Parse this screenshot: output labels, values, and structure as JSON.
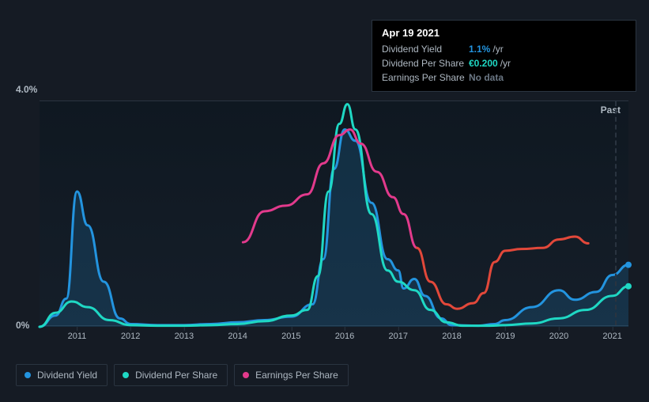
{
  "chart": {
    "type": "area-line",
    "background_color": "#151b24",
    "plot_bg_top": "#0f1821",
    "plot_bg_bottom": "#151e29",
    "grid_color": "#2a3440",
    "text_color": "#aeb8c2",
    "title_fontsize": 13,
    "label_fontsize": 12,
    "tick_fontsize": 11,
    "past_label": "Past",
    "y_axis": {
      "min_label": "0%",
      "max_label": "4.0%",
      "ymin": 0,
      "ymax": 4.0
    },
    "x_axis": {
      "xmin": 2010.3,
      "xmax": 2021.3,
      "ticks": [
        2011,
        2012,
        2013,
        2014,
        2015,
        2016,
        2017,
        2018,
        2019,
        2020,
        2021
      ]
    },
    "series": [
      {
        "id": "dividend_yield",
        "label": "Dividend Yield",
        "color": "#2394df",
        "fill": true,
        "fill_color": "rgba(35,148,223,0.18)",
        "line_width": 3,
        "end_dot": true,
        "points": [
          [
            2010.3,
            0.0
          ],
          [
            2010.6,
            0.2
          ],
          [
            2010.8,
            0.5
          ],
          [
            2011.0,
            2.4
          ],
          [
            2011.2,
            1.8
          ],
          [
            2011.5,
            0.8
          ],
          [
            2011.8,
            0.15
          ],
          [
            2012.0,
            0.05
          ],
          [
            2012.5,
            0.03
          ],
          [
            2013.0,
            0.03
          ],
          [
            2013.5,
            0.05
          ],
          [
            2014.0,
            0.08
          ],
          [
            2014.5,
            0.12
          ],
          [
            2015.0,
            0.18
          ],
          [
            2015.4,
            0.4
          ],
          [
            2015.6,
            1.2
          ],
          [
            2015.8,
            2.8
          ],
          [
            2016.0,
            3.5
          ],
          [
            2016.2,
            3.3
          ],
          [
            2016.5,
            2.2
          ],
          [
            2016.8,
            1.2
          ],
          [
            2017.0,
            1.0
          ],
          [
            2017.1,
            0.68
          ],
          [
            2017.3,
            0.85
          ],
          [
            2017.5,
            0.55
          ],
          [
            2017.8,
            0.15
          ],
          [
            2018.0,
            0.03
          ],
          [
            2018.5,
            0.02
          ],
          [
            2018.8,
            0.05
          ],
          [
            2019.0,
            0.12
          ],
          [
            2019.5,
            0.35
          ],
          [
            2020.0,
            0.65
          ],
          [
            2020.3,
            0.48
          ],
          [
            2020.7,
            0.62
          ],
          [
            2021.0,
            0.92
          ],
          [
            2021.3,
            1.1
          ]
        ]
      },
      {
        "id": "dividend_per_share",
        "label": "Dividend Per Share",
        "color": "#1fd8c4",
        "fill": false,
        "line_width": 3,
        "end_dot": true,
        "points": [
          [
            2010.3,
            0.0
          ],
          [
            2010.6,
            0.25
          ],
          [
            2010.9,
            0.45
          ],
          [
            2011.2,
            0.35
          ],
          [
            2011.6,
            0.12
          ],
          [
            2012.0,
            0.03
          ],
          [
            2012.5,
            0.02
          ],
          [
            2013.0,
            0.02
          ],
          [
            2013.5,
            0.03
          ],
          [
            2014.0,
            0.05
          ],
          [
            2014.5,
            0.1
          ],
          [
            2015.0,
            0.2
          ],
          [
            2015.3,
            0.3
          ],
          [
            2015.5,
            0.9
          ],
          [
            2015.7,
            2.4
          ],
          [
            2015.9,
            3.6
          ],
          [
            2016.05,
            3.95
          ],
          [
            2016.2,
            3.5
          ],
          [
            2016.5,
            2.0
          ],
          [
            2016.8,
            1.0
          ],
          [
            2017.0,
            0.8
          ],
          [
            2017.3,
            0.65
          ],
          [
            2017.6,
            0.3
          ],
          [
            2017.9,
            0.08
          ],
          [
            2018.2,
            0.02
          ],
          [
            2018.7,
            0.02
          ],
          [
            2019.0,
            0.03
          ],
          [
            2019.5,
            0.06
          ],
          [
            2020.0,
            0.15
          ],
          [
            2020.5,
            0.3
          ],
          [
            2021.0,
            0.55
          ],
          [
            2021.3,
            0.72
          ]
        ]
      },
      {
        "id": "earnings_per_share",
        "label": "Earnings Per Share",
        "color": "#e23a8c",
        "color_neg": "#e2483a",
        "fill": false,
        "line_width": 3,
        "end_dot": false,
        "split_at": 2017.35,
        "points_pos": [
          [
            2014.1,
            1.5
          ],
          [
            2014.5,
            2.05
          ],
          [
            2014.9,
            2.15
          ],
          [
            2015.3,
            2.35
          ],
          [
            2015.6,
            2.9
          ],
          [
            2015.9,
            3.4
          ],
          [
            2016.1,
            3.5
          ],
          [
            2016.3,
            3.25
          ],
          [
            2016.6,
            2.75
          ],
          [
            2016.9,
            2.3
          ],
          [
            2017.1,
            2.0
          ],
          [
            2017.35,
            1.4
          ]
        ],
        "points_neg": [
          [
            2017.35,
            1.4
          ],
          [
            2017.6,
            0.8
          ],
          [
            2017.9,
            0.4
          ],
          [
            2018.1,
            0.32
          ],
          [
            2018.4,
            0.42
          ],
          [
            2018.6,
            0.6
          ],
          [
            2018.8,
            1.15
          ],
          [
            2019.0,
            1.35
          ],
          [
            2019.3,
            1.38
          ],
          [
            2019.7,
            1.4
          ],
          [
            2020.0,
            1.55
          ],
          [
            2020.3,
            1.6
          ],
          [
            2020.55,
            1.48
          ]
        ]
      }
    ]
  },
  "tooltip": {
    "date": "Apr 19 2021",
    "rows": [
      {
        "label": "Dividend Yield",
        "value": "1.1%",
        "suffix": "/yr",
        "color": "#2394df"
      },
      {
        "label": "Dividend Per Share",
        "value": "€0.200",
        "suffix": "/yr",
        "color": "#1fd8c4"
      },
      {
        "label": "Earnings Per Share",
        "value": "No data",
        "suffix": "",
        "color": "#6b7784"
      }
    ]
  },
  "legend": [
    {
      "id": "dividend_yield",
      "label": "Dividend Yield",
      "color": "#2394df"
    },
    {
      "id": "dividend_per_share",
      "label": "Dividend Per Share",
      "color": "#1fd8c4"
    },
    {
      "id": "earnings_per_share",
      "label": "Earnings Per Share",
      "color": "#e23a8c"
    }
  ]
}
